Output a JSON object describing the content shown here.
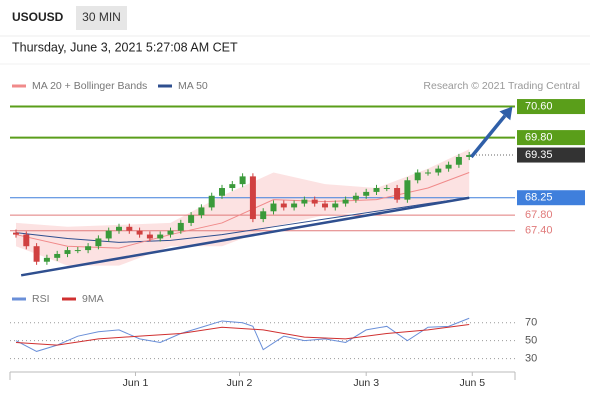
{
  "header": {
    "symbol": "USOUSD",
    "interval": "30 MIN",
    "date": "Thursday, June 3, 2021 5:27:08 AM CET",
    "credit": "Research © 2021 Trading Central"
  },
  "chart_data": [
    {
      "type": "candlestick",
      "legend": [
        {
          "name": "MA 20 + Bollinger Bands",
          "color": "#f08a8a"
        },
        {
          "name": "MA 50",
          "color": "#2f4f8f"
        }
      ],
      "up_color": "#3a9a3a",
      "down_color": "#d04040",
      "ylim": [
        66.0,
        71.8
      ],
      "xticks": [
        {
          "value": 11.6,
          "label": "Jun 1"
        },
        {
          "value": 21.7,
          "label": "Jun 2"
        },
        {
          "value": 34,
          "label": "Jun 3"
        },
        {
          "value": 44.3,
          "label": "Jun 5"
        }
      ],
      "open": [
        67.35,
        67.3,
        67.0,
        66.6,
        66.7,
        66.8,
        66.9,
        66.9,
        67.0,
        67.2,
        67.4,
        67.5,
        67.4,
        67.3,
        67.2,
        67.3,
        67.4,
        67.6,
        67.8,
        68.0,
        68.3,
        68.5,
        68.6,
        68.8,
        67.7,
        67.9,
        68.1,
        68.0,
        68.1,
        68.2,
        68.1,
        68.0,
        68.1,
        68.2,
        68.3,
        68.4,
        68.5,
        68.5,
        68.2,
        68.7,
        68.9,
        68.9,
        69.0,
        69.1,
        69.3
      ],
      "high": [
        67.43,
        67.38,
        67.08,
        66.78,
        66.88,
        66.98,
        66.98,
        67.08,
        67.28,
        67.48,
        67.58,
        67.58,
        67.48,
        67.38,
        67.38,
        67.48,
        67.68,
        67.88,
        68.08,
        68.38,
        68.58,
        68.68,
        68.88,
        68.88,
        67.98,
        68.18,
        68.18,
        68.18,
        68.28,
        68.28,
        68.18,
        68.18,
        68.28,
        68.38,
        68.48,
        68.58,
        68.58,
        68.58,
        68.78,
        68.98,
        68.98,
        69.08,
        69.18,
        69.38,
        69.43
      ],
      "low": [
        67.22,
        66.92,
        66.52,
        66.52,
        66.62,
        66.72,
        66.82,
        66.82,
        66.92,
        67.12,
        67.32,
        67.32,
        67.22,
        67.12,
        67.12,
        67.22,
        67.32,
        67.52,
        67.72,
        67.92,
        68.22,
        68.42,
        68.52,
        67.62,
        67.62,
        67.82,
        67.92,
        67.92,
        68.02,
        68.02,
        67.92,
        67.92,
        68.02,
        68.12,
        68.22,
        68.32,
        68.42,
        68.12,
        68.12,
        68.62,
        68.82,
        68.82,
        68.92,
        69.02,
        69.22
      ],
      "close": [
        67.3,
        67.0,
        66.6,
        66.7,
        66.8,
        66.9,
        66.9,
        67.0,
        67.2,
        67.4,
        67.5,
        67.4,
        67.3,
        67.2,
        67.3,
        67.4,
        67.6,
        67.8,
        68.0,
        68.3,
        68.5,
        68.6,
        68.8,
        67.7,
        67.9,
        68.1,
        68.0,
        68.1,
        68.2,
        68.1,
        68.0,
        68.1,
        68.2,
        68.3,
        68.4,
        68.5,
        68.5,
        68.2,
        68.7,
        68.9,
        68.9,
        69.0,
        69.1,
        69.3,
        69.35
      ],
      "indicators": [
        {
          "color": "#2f4f8f",
          "x": [
            0,
            5,
            10,
            15,
            20,
            25,
            30,
            35,
            40,
            44
          ],
          "values": [
            67.35,
            67.2,
            67.1,
            67.15,
            67.3,
            67.5,
            67.7,
            67.9,
            68.1,
            68.25
          ]
        },
        {
          "color": "#f08a8a",
          "x": [
            0,
            5,
            10,
            15,
            20,
            25,
            30,
            35,
            40,
            44
          ],
          "values": [
            67.3,
            67.0,
            66.95,
            67.3,
            67.6,
            68.2,
            68.15,
            68.2,
            68.5,
            68.9
          ]
        }
      ],
      "band": {
        "color": "#fbd5d5",
        "x": [
          0,
          5,
          10,
          15,
          20,
          25,
          30,
          35,
          40,
          44
        ],
        "upper": [
          67.6,
          67.5,
          67.55,
          67.6,
          68.3,
          68.9,
          68.6,
          68.5,
          69.0,
          69.5
        ],
        "lower": [
          67.0,
          66.5,
          66.5,
          67.0,
          67.0,
          67.5,
          67.8,
          67.9,
          68.1,
          68.3
        ]
      },
      "trendline": {
        "color": "#2f4f8f",
        "x": [
          0.5,
          44
        ],
        "values": [
          66.25,
          68.25
        ]
      },
      "arrow": {
        "color": "#2f5fa8",
        "x": [
          44.2,
          48.2
        ],
        "values": [
          69.3,
          70.6
        ]
      },
      "levels": [
        {
          "value": 70.6,
          "label": "70.60",
          "color": "#5a9e1a",
          "label_box": true
        },
        {
          "value": 69.8,
          "label": "69.80",
          "color": "#5a9e1a",
          "label_box": true
        },
        {
          "value": 69.35,
          "label": "69.35",
          "color": "#333333",
          "label_box": true,
          "line": "dotted"
        },
        {
          "value": 68.25,
          "label": "68.25",
          "color": "#3f7fdc",
          "label_box": true
        },
        {
          "value": 67.8,
          "label": "67.80",
          "color": "#e07a7a",
          "label_box": false
        },
        {
          "value": 67.4,
          "label": "67.40",
          "color": "#e07a7a",
          "label_box": false
        }
      ]
    },
    {
      "type": "line",
      "ylim": [
        15,
        82
      ],
      "yticks": [
        30,
        50,
        70
      ],
      "series": [
        {
          "name": "RSI",
          "color": "#6a8fd8",
          "x": [
            0,
            2,
            4,
            6,
            8,
            10,
            12,
            14,
            16,
            18,
            20,
            22,
            23,
            24,
            26,
            28,
            30,
            32,
            34,
            36,
            38,
            40,
            42,
            44
          ],
          "values": [
            50,
            38,
            45,
            55,
            60,
            62,
            52,
            48,
            58,
            65,
            72,
            70,
            66,
            40,
            55,
            50,
            52,
            48,
            62,
            66,
            50,
            65,
            66,
            75
          ]
        },
        {
          "name": "9MA",
          "color": "#d03030",
          "x": [
            0,
            4,
            8,
            12,
            16,
            20,
            24,
            28,
            32,
            36,
            40,
            44
          ],
          "values": [
            48,
            45,
            52,
            55,
            58,
            65,
            62,
            54,
            52,
            58,
            62,
            68
          ]
        }
      ]
    }
  ]
}
